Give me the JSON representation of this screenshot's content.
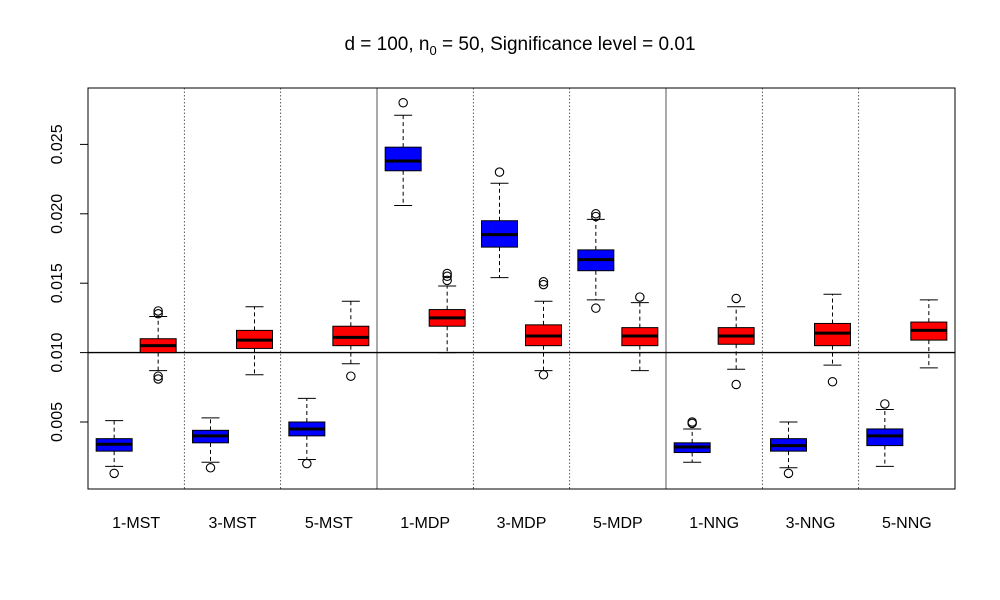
{
  "chart_data": {
    "type": "boxplot",
    "title_parts": {
      "prefix": "d = 100, n",
      "subscript": "0",
      "suffix": " = 50, Significance level = 0.01"
    },
    "ylim": [
      0.0,
      0.0282
    ],
    "y_ticks": [
      {
        "value": 0.005,
        "label": "0.005"
      },
      {
        "value": 0.01,
        "label": "0.010"
      },
      {
        "value": 0.015,
        "label": "0.015"
      },
      {
        "value": 0.02,
        "label": "0.020"
      },
      {
        "value": 0.025,
        "label": "0.025"
      }
    ],
    "reference_line": 0.01,
    "categories": [
      "1-MST",
      "3-MST",
      "5-MST",
      "1-MDP",
      "3-MDP",
      "5-MDP",
      "1-NNG",
      "3-NNG",
      "5-NNG"
    ],
    "series_colors": {
      "blue": "#0000ff",
      "red": "#ff0000"
    },
    "boxes": [
      {
        "category": "1-MST",
        "series": "blue",
        "whisker_low": 0.0018,
        "q1": 0.0029,
        "median": 0.0034,
        "q3": 0.0038,
        "whisker_high": 0.0051,
        "outliers": [
          0.0013
        ]
      },
      {
        "category": "1-MST",
        "series": "red",
        "whisker_low": 0.0087,
        "q1": 0.01,
        "median": 0.0105,
        "q3": 0.011,
        "whisker_high": 0.0126,
        "outliers": [
          0.0081,
          0.0083,
          0.0128,
          0.013
        ]
      },
      {
        "category": "3-MST",
        "series": "blue",
        "whisker_low": 0.0021,
        "q1": 0.0035,
        "median": 0.004,
        "q3": 0.0044,
        "whisker_high": 0.0053,
        "outliers": [
          0.0017
        ]
      },
      {
        "category": "3-MST",
        "series": "red",
        "whisker_low": 0.0084,
        "q1": 0.0103,
        "median": 0.0109,
        "q3": 0.0116,
        "whisker_high": 0.0133,
        "outliers": []
      },
      {
        "category": "5-MST",
        "series": "blue",
        "whisker_low": 0.0023,
        "q1": 0.004,
        "median": 0.0045,
        "q3": 0.005,
        "whisker_high": 0.0067,
        "outliers": [
          0.002
        ]
      },
      {
        "category": "5-MST",
        "series": "red",
        "whisker_low": 0.0092,
        "q1": 0.0105,
        "median": 0.0111,
        "q3": 0.0119,
        "whisker_high": 0.0137,
        "outliers": [
          0.0083
        ]
      },
      {
        "category": "1-MDP",
        "series": "blue",
        "whisker_low": 0.0206,
        "q1": 0.0231,
        "median": 0.0238,
        "q3": 0.0248,
        "whisker_high": 0.0271,
        "outliers": [
          0.028
        ]
      },
      {
        "category": "1-MDP",
        "series": "red",
        "whisker_low": 0.01,
        "q1": 0.0119,
        "median": 0.0125,
        "q3": 0.0131,
        "whisker_high": 0.0148,
        "outliers": [
          0.0152,
          0.0155,
          0.0157
        ]
      },
      {
        "category": "3-MDP",
        "series": "blue",
        "whisker_low": 0.0154,
        "q1": 0.0176,
        "median": 0.0185,
        "q3": 0.0195,
        "whisker_high": 0.0222,
        "outliers": [
          0.023
        ]
      },
      {
        "category": "3-MDP",
        "series": "red",
        "whisker_low": 0.0087,
        "q1": 0.0105,
        "median": 0.0112,
        "q3": 0.012,
        "whisker_high": 0.0137,
        "outliers": [
          0.0084,
          0.0149,
          0.0151
        ]
      },
      {
        "category": "5-MDP",
        "series": "blue",
        "whisker_low": 0.0138,
        "q1": 0.0159,
        "median": 0.0167,
        "q3": 0.0174,
        "whisker_high": 0.0196,
        "outliers": [
          0.0132,
          0.0198,
          0.02
        ]
      },
      {
        "category": "5-MDP",
        "series": "red",
        "whisker_low": 0.0087,
        "q1": 0.0105,
        "median": 0.0112,
        "q3": 0.0118,
        "whisker_high": 0.0136,
        "outliers": [
          0.014
        ]
      },
      {
        "category": "1-NNG",
        "series": "blue",
        "whisker_low": 0.0021,
        "q1": 0.0028,
        "median": 0.0032,
        "q3": 0.0035,
        "whisker_high": 0.0045,
        "outliers": [
          0.0049,
          0.005
        ]
      },
      {
        "category": "1-NNG",
        "series": "red",
        "whisker_low": 0.0088,
        "q1": 0.0106,
        "median": 0.0112,
        "q3": 0.0118,
        "whisker_high": 0.0133,
        "outliers": [
          0.0077,
          0.0139
        ]
      },
      {
        "category": "3-NNG",
        "series": "blue",
        "whisker_low": 0.0017,
        "q1": 0.0029,
        "median": 0.0033,
        "q3": 0.0038,
        "whisker_high": 0.005,
        "outliers": [
          0.0013
        ]
      },
      {
        "category": "3-NNG",
        "series": "red",
        "whisker_low": 0.0091,
        "q1": 0.0105,
        "median": 0.0114,
        "q3": 0.0121,
        "whisker_high": 0.0142,
        "outliers": [
          0.0079
        ]
      },
      {
        "category": "5-NNG",
        "series": "blue",
        "whisker_low": 0.0018,
        "q1": 0.0033,
        "median": 0.004,
        "q3": 0.0045,
        "whisker_high": 0.0059,
        "outliers": [
          0.0063
        ]
      },
      {
        "category": "5-NNG",
        "series": "red",
        "whisker_low": 0.0089,
        "q1": 0.0109,
        "median": 0.0116,
        "q3": 0.0122,
        "whisker_high": 0.0138,
        "outliers": []
      }
    ]
  }
}
